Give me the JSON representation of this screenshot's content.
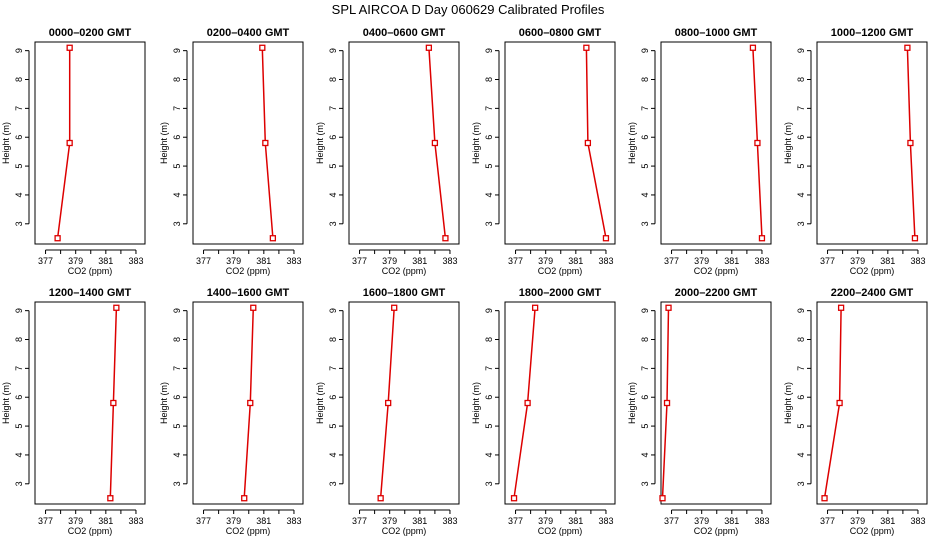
{
  "title": "SPL AIRCOA D  Day 060629  Calibrated Profiles",
  "colors": {
    "line": "#dd0000",
    "axis": "#000000",
    "background": "#ffffff"
  },
  "chart_data": [
    {
      "type": "line",
      "title": "0000–0200 GMT",
      "xlabel": "CO2 (ppm)",
      "ylabel": "Height (m)",
      "x_ticks": [
        "377",
        "379",
        "381",
        "383"
      ],
      "y_ticks": [
        "3",
        "4",
        "5",
        "6",
        "7",
        "8",
        "9"
      ],
      "xlim": [
        376.3,
        383.6
      ],
      "ylim": [
        2.3,
        9.3
      ],
      "grid": false,
      "x": [
        377.8,
        378.6,
        378.6
      ],
      "y": [
        2.5,
        5.8,
        9.1
      ]
    },
    {
      "type": "line",
      "title": "0200–0400 GMT",
      "xlabel": "CO2 (ppm)",
      "ylabel": "Height (m)",
      "x_ticks": [
        "377",
        "379",
        "381",
        "383"
      ],
      "y_ticks": [
        "3",
        "4",
        "5",
        "6",
        "7",
        "8",
        "9"
      ],
      "xlim": [
        376.3,
        383.6
      ],
      "ylim": [
        2.3,
        9.3
      ],
      "grid": false,
      "x": [
        381.6,
        381.1,
        380.9
      ],
      "y": [
        2.5,
        5.8,
        9.1
      ]
    },
    {
      "type": "line",
      "title": "0400–0600 GMT",
      "xlabel": "CO2 (ppm)",
      "ylabel": "Height (m)",
      "x_ticks": [
        "377",
        "379",
        "381",
        "383"
      ],
      "y_ticks": [
        "3",
        "4",
        "5",
        "6",
        "7",
        "8",
        "9"
      ],
      "xlim": [
        376.3,
        383.6
      ],
      "ylim": [
        2.3,
        9.3
      ],
      "grid": false,
      "x": [
        382.7,
        382.0,
        381.6
      ],
      "y": [
        2.5,
        5.8,
        9.1
      ]
    },
    {
      "type": "line",
      "title": "0600–0800 GMT",
      "xlabel": "CO2 (ppm)",
      "ylabel": "Height (m)",
      "x_ticks": [
        "377",
        "379",
        "381",
        "383"
      ],
      "y_ticks": [
        "3",
        "4",
        "5",
        "6",
        "7",
        "8",
        "9"
      ],
      "xlim": [
        376.3,
        383.6
      ],
      "ylim": [
        2.3,
        9.3
      ],
      "grid": false,
      "x": [
        383.0,
        381.8,
        381.7
      ],
      "y": [
        2.5,
        5.8,
        9.1
      ]
    },
    {
      "type": "line",
      "title": "0800–1000 GMT",
      "xlabel": "CO2 (ppm)",
      "ylabel": "Height (m)",
      "x_ticks": [
        "377",
        "379",
        "381",
        "383"
      ],
      "y_ticks": [
        "3",
        "4",
        "5",
        "6",
        "7",
        "8",
        "9"
      ],
      "xlim": [
        376.3,
        383.6
      ],
      "ylim": [
        2.3,
        9.3
      ],
      "grid": false,
      "x": [
        383.0,
        382.7,
        382.4
      ],
      "y": [
        2.5,
        5.8,
        9.1
      ]
    },
    {
      "type": "line",
      "title": "1000–1200 GMT",
      "xlabel": "CO2 (ppm)",
      "ylabel": "Height (m)",
      "x_ticks": [
        "377",
        "379",
        "381",
        "383"
      ],
      "y_ticks": [
        "3",
        "4",
        "5",
        "6",
        "7",
        "8",
        "9"
      ],
      "xlim": [
        376.3,
        383.6
      ],
      "ylim": [
        2.3,
        9.3
      ],
      "grid": false,
      "x": [
        382.8,
        382.5,
        382.3
      ],
      "y": [
        2.5,
        5.8,
        9.1
      ]
    },
    {
      "type": "line",
      "title": "1200–1400 GMT",
      "xlabel": "CO2 (ppm)",
      "ylabel": "Height (m)",
      "x_ticks": [
        "377",
        "379",
        "381",
        "383"
      ],
      "y_ticks": [
        "3",
        "4",
        "5",
        "6",
        "7",
        "8",
        "9"
      ],
      "xlim": [
        376.3,
        383.6
      ],
      "ylim": [
        2.3,
        9.3
      ],
      "grid": false,
      "x": [
        381.3,
        381.5,
        381.7
      ],
      "y": [
        2.5,
        5.8,
        9.1
      ]
    },
    {
      "type": "line",
      "title": "1400–1600 GMT",
      "xlabel": "CO2 (ppm)",
      "ylabel": "Height (m)",
      "x_ticks": [
        "377",
        "379",
        "381",
        "383"
      ],
      "y_ticks": [
        "3",
        "4",
        "5",
        "6",
        "7",
        "8",
        "9"
      ],
      "xlim": [
        376.3,
        383.6
      ],
      "ylim": [
        2.3,
        9.3
      ],
      "grid": false,
      "x": [
        379.7,
        380.1,
        380.3
      ],
      "y": [
        2.5,
        5.8,
        9.1
      ]
    },
    {
      "type": "line",
      "title": "1600–1800 GMT",
      "xlabel": "CO2 (ppm)",
      "ylabel": "Height (m)",
      "x_ticks": [
        "377",
        "379",
        "381",
        "383"
      ],
      "y_ticks": [
        "3",
        "4",
        "5",
        "6",
        "7",
        "8",
        "9"
      ],
      "xlim": [
        376.3,
        383.6
      ],
      "ylim": [
        2.3,
        9.3
      ],
      "grid": false,
      "x": [
        378.4,
        378.9,
        379.3
      ],
      "y": [
        2.5,
        5.8,
        9.1
      ]
    },
    {
      "type": "line",
      "title": "1800–2000 GMT",
      "xlabel": "CO2 (ppm)",
      "ylabel": "Height (m)",
      "x_ticks": [
        "377",
        "379",
        "381",
        "383"
      ],
      "y_ticks": [
        "3",
        "4",
        "5",
        "6",
        "7",
        "8",
        "9"
      ],
      "xlim": [
        376.3,
        383.6
      ],
      "ylim": [
        2.3,
        9.3
      ],
      "grid": false,
      "x": [
        376.9,
        377.8,
        378.3
      ],
      "y": [
        2.5,
        5.8,
        9.1
      ]
    },
    {
      "type": "line",
      "title": "2000–2200 GMT",
      "xlabel": "CO2 (ppm)",
      "ylabel": "Height (m)",
      "x_ticks": [
        "377",
        "379",
        "381",
        "383"
      ],
      "y_ticks": [
        "3",
        "4",
        "5",
        "6",
        "7",
        "8",
        "9"
      ],
      "xlim": [
        376.3,
        383.6
      ],
      "ylim": [
        2.3,
        9.3
      ],
      "grid": false,
      "x": [
        376.4,
        376.7,
        376.8
      ],
      "y": [
        2.5,
        5.8,
        9.1
      ]
    },
    {
      "type": "line",
      "title": "2200–2400 GMT",
      "xlabel": "CO2 (ppm)",
      "ylabel": "Height (m)",
      "x_ticks": [
        "377",
        "379",
        "381",
        "383"
      ],
      "y_ticks": [
        "3",
        "4",
        "5",
        "6",
        "7",
        "8",
        "9"
      ],
      "xlim": [
        376.3,
        383.6
      ],
      "ylim": [
        2.3,
        9.3
      ],
      "grid": false,
      "x": [
        376.8,
        377.8,
        377.9
      ],
      "y": [
        2.5,
        5.8,
        9.1
      ]
    }
  ]
}
